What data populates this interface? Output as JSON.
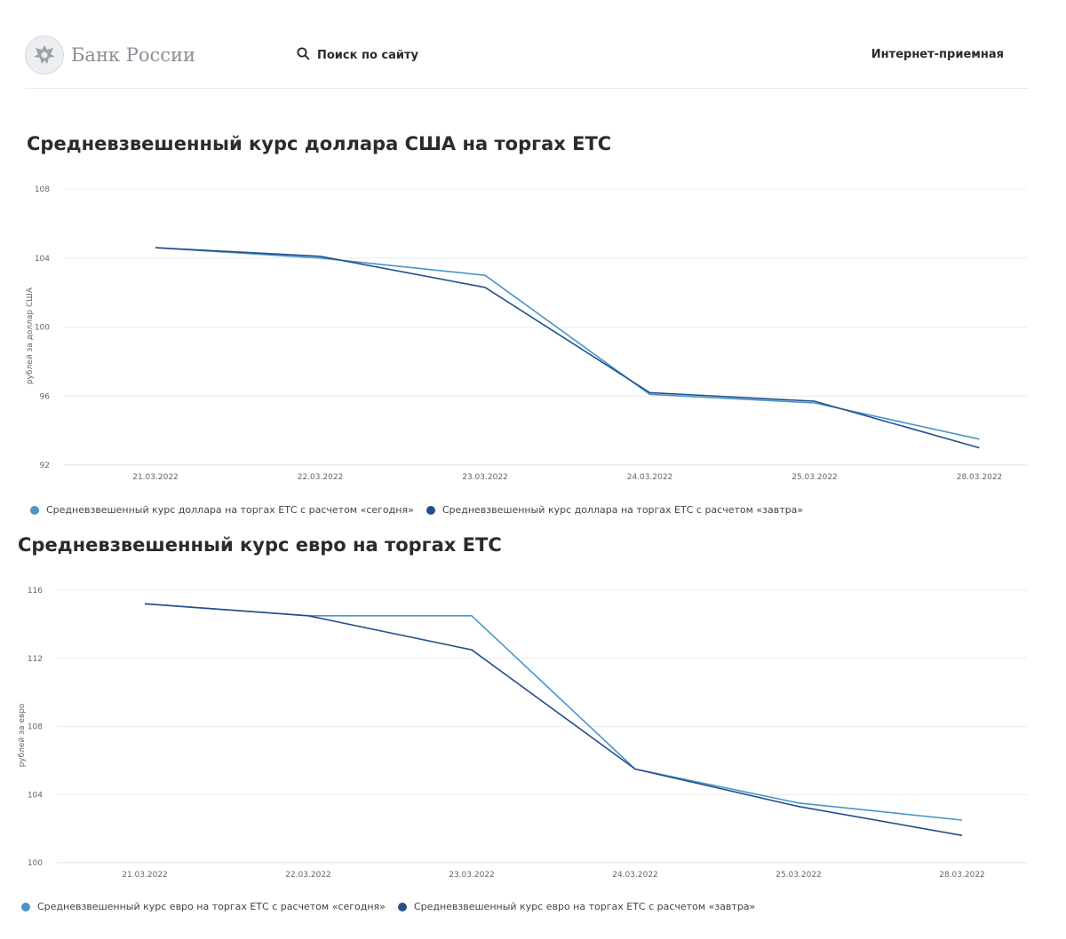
{
  "header": {
    "logo_text": "Банк России",
    "search_label": "Поиск по сайту",
    "reception_label": "Интернет-приемная"
  },
  "colors": {
    "series_today": "#4a95c9",
    "series_tomorrow": "#24508a",
    "grid": "#ececec"
  },
  "chart_data": [
    {
      "type": "line",
      "title": "Средневзвешенный курс доллара США на торгах ЕТС",
      "xlabel": "",
      "ylabel": "рублей за доллар США",
      "categories": [
        "21.03.2022",
        "22.03.2022",
        "23.03.2022",
        "24.03.2022",
        "25.03.2022",
        "28.03.2022"
      ],
      "yticks": [
        92,
        96,
        100,
        104,
        108
      ],
      "ylim": [
        92,
        108
      ],
      "series": [
        {
          "name": "Средневзвешенный курс доллара на торгах ЕТС с расчетом «сегодня»",
          "color": "#4a95c9",
          "values": [
            104.6,
            104.0,
            103.0,
            96.1,
            95.6,
            93.5
          ]
        },
        {
          "name": "Средневзвешенный курс доллара на торгах ЕТС с расчетом «завтра»",
          "color": "#24508a",
          "values": [
            104.6,
            104.1,
            102.3,
            96.2,
            95.7,
            93.0
          ]
        }
      ],
      "legend": "bottom-left"
    },
    {
      "type": "line",
      "title": "Средневзвешенный курс евро на торгах ЕТС",
      "xlabel": "",
      "ylabel": "рублей за евро",
      "categories": [
        "21.03.2022",
        "22.03.2022",
        "23.03.2022",
        "24.03.2022",
        "25.03.2022",
        "28.03.2022"
      ],
      "yticks": [
        100,
        104,
        108,
        112,
        116
      ],
      "ylim": [
        100,
        116
      ],
      "series": [
        {
          "name": "Средневзвешенный курс евро на торгах ЕТС с расчетом «сегодня»",
          "color": "#4a95c9",
          "values": [
            115.2,
            114.5,
            114.5,
            105.5,
            103.5,
            102.5
          ]
        },
        {
          "name": "Средневзвешенный курс евро на торгах ЕТС с расчетом «завтра»",
          "color": "#24508a",
          "values": [
            115.2,
            114.5,
            112.5,
            105.5,
            103.3,
            101.6
          ]
        }
      ],
      "legend": "bottom-left"
    }
  ]
}
